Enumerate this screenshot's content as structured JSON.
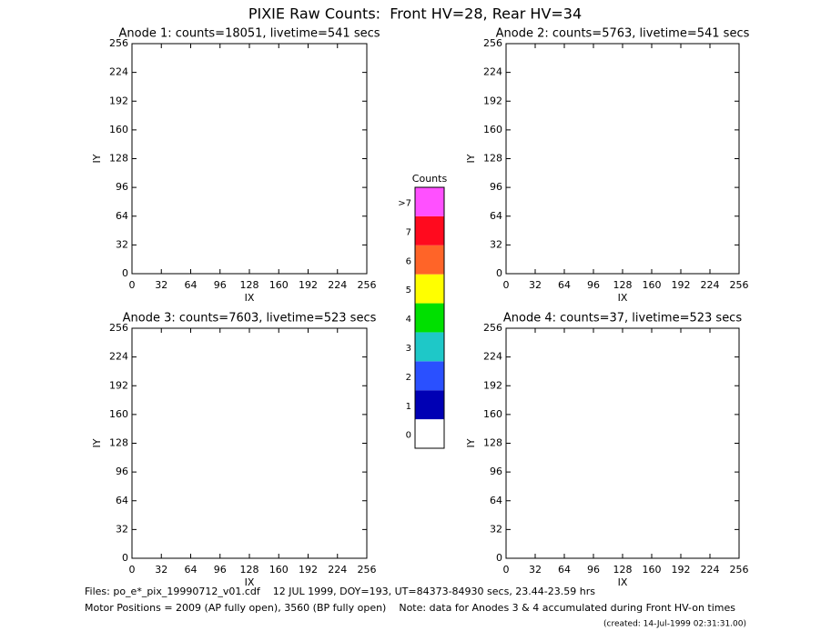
{
  "title": "PIXIE Raw Counts:  Front HV=28, Rear HV=34",
  "chart_data": [
    {
      "type": "heatmap",
      "title": "Anode 1: counts=18051, livetime=541 secs",
      "xlabel": "IX",
      "ylabel": "IY",
      "xlim": [
        0,
        256
      ],
      "ylim": [
        0,
        256
      ],
      "xticks": [
        0,
        32,
        64,
        96,
        128,
        160,
        192,
        224,
        256
      ],
      "yticks": [
        0,
        32,
        64,
        96,
        128,
        160,
        192,
        224,
        256
      ]
    },
    {
      "type": "heatmap",
      "title": "Anode 2: counts=5763, livetime=541 secs",
      "xlabel": "IX",
      "ylabel": "IY",
      "xlim": [
        0,
        256
      ],
      "ylim": [
        0,
        256
      ],
      "xticks": [
        0,
        32,
        64,
        96,
        128,
        160,
        192,
        224,
        256
      ],
      "yticks": [
        0,
        32,
        64,
        96,
        128,
        160,
        192,
        224,
        256
      ]
    },
    {
      "type": "heatmap",
      "title": "Anode 3: counts=7603, livetime=523 secs",
      "xlabel": "IX",
      "ylabel": "IY",
      "xlim": [
        0,
        256
      ],
      "ylim": [
        0,
        256
      ],
      "xticks": [
        0,
        32,
        64,
        96,
        128,
        160,
        192,
        224,
        256
      ],
      "yticks": [
        0,
        32,
        64,
        96,
        128,
        160,
        192,
        224,
        256
      ]
    },
    {
      "type": "heatmap",
      "title": "Anode 4: counts=37, livetime=523 secs",
      "xlabel": "IX",
      "ylabel": "IY",
      "xlim": [
        0,
        256
      ],
      "ylim": [
        0,
        256
      ],
      "xticks": [
        0,
        32,
        64,
        96,
        128,
        160,
        192,
        224,
        256
      ],
      "yticks": [
        0,
        32,
        64,
        96,
        128,
        160,
        192,
        224,
        256
      ]
    }
  ],
  "colorbar": {
    "title": "Counts",
    "ticks": [
      0,
      1,
      2,
      3,
      4,
      5,
      6,
      7,
      {
        "value": 8,
        "label": ">7"
      }
    ],
    "colors": [
      "#ffffff",
      "#0000b4",
      "#2a50ff",
      "#1ec8c8",
      "#00e000",
      "#ffff00",
      "#ff6428",
      "#ff0a1e",
      "#ff50ff"
    ]
  },
  "footer": [
    "Files: po_e*_pix_19990712_v01.cdf    12 JUL 1999, DOY=193, UT=84373-84930 secs, 23.44-23.59 hrs",
    "Motor Positions = 2009 (AP fully open), 3560 (BP fully open)    Note: data for Anodes 3 & 4 accumulated during Front HV-on times",
    "(created: 14-Jul-1999 02:31:31.00)"
  ]
}
